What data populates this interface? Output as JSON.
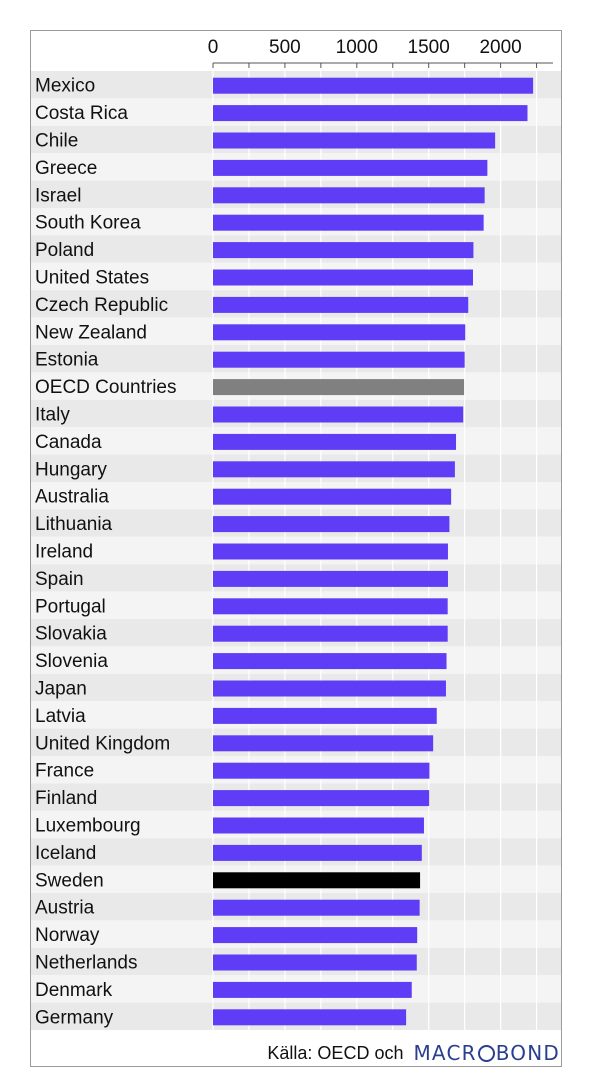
{
  "chart_data": {
    "type": "bar",
    "orientation": "horizontal",
    "categories": [
      "Mexico",
      "Costa Rica",
      "Chile",
      "Greece",
      "Israel",
      "South Korea",
      "Poland",
      "United States",
      "Czech Republic",
      "New Zealand",
      "Estonia",
      "OECD Countries",
      "Italy",
      "Canada",
      "Hungary",
      "Australia",
      "Lithuania",
      "Ireland",
      "Spain",
      "Portugal",
      "Slovakia",
      "Slovenia",
      "Japan",
      "Latvia",
      "United Kingdom",
      "France",
      "Finland",
      "Luxembourg",
      "Iceland",
      "Sweden",
      "Austria",
      "Norway",
      "Netherlands",
      "Denmark",
      "Germany"
    ],
    "values": [
      2226,
      2187,
      1962,
      1908,
      1889,
      1882,
      1811,
      1808,
      1775,
      1754,
      1750,
      1746,
      1740,
      1690,
      1682,
      1656,
      1644,
      1634,
      1634,
      1632,
      1632,
      1624,
      1620,
      1556,
      1531,
      1505,
      1503,
      1467,
      1452,
      1440,
      1437,
      1420,
      1417,
      1382,
      1343
    ],
    "colors": {
      "default": "#5f3cf5",
      "OECD Countries": "#808080",
      "Sweden": "#000000"
    },
    "xlim": [
      0,
      2300
    ],
    "xticks": [
      "0",
      "500",
      "1000",
      "1500",
      "2000"
    ],
    "title": "",
    "xlabel": "",
    "ylabel": "",
    "grid": true,
    "legend": "none"
  },
  "footer": {
    "source": "Källa: OECD och",
    "logo_text_left": "MACR",
    "logo_text_right": "BOND"
  }
}
